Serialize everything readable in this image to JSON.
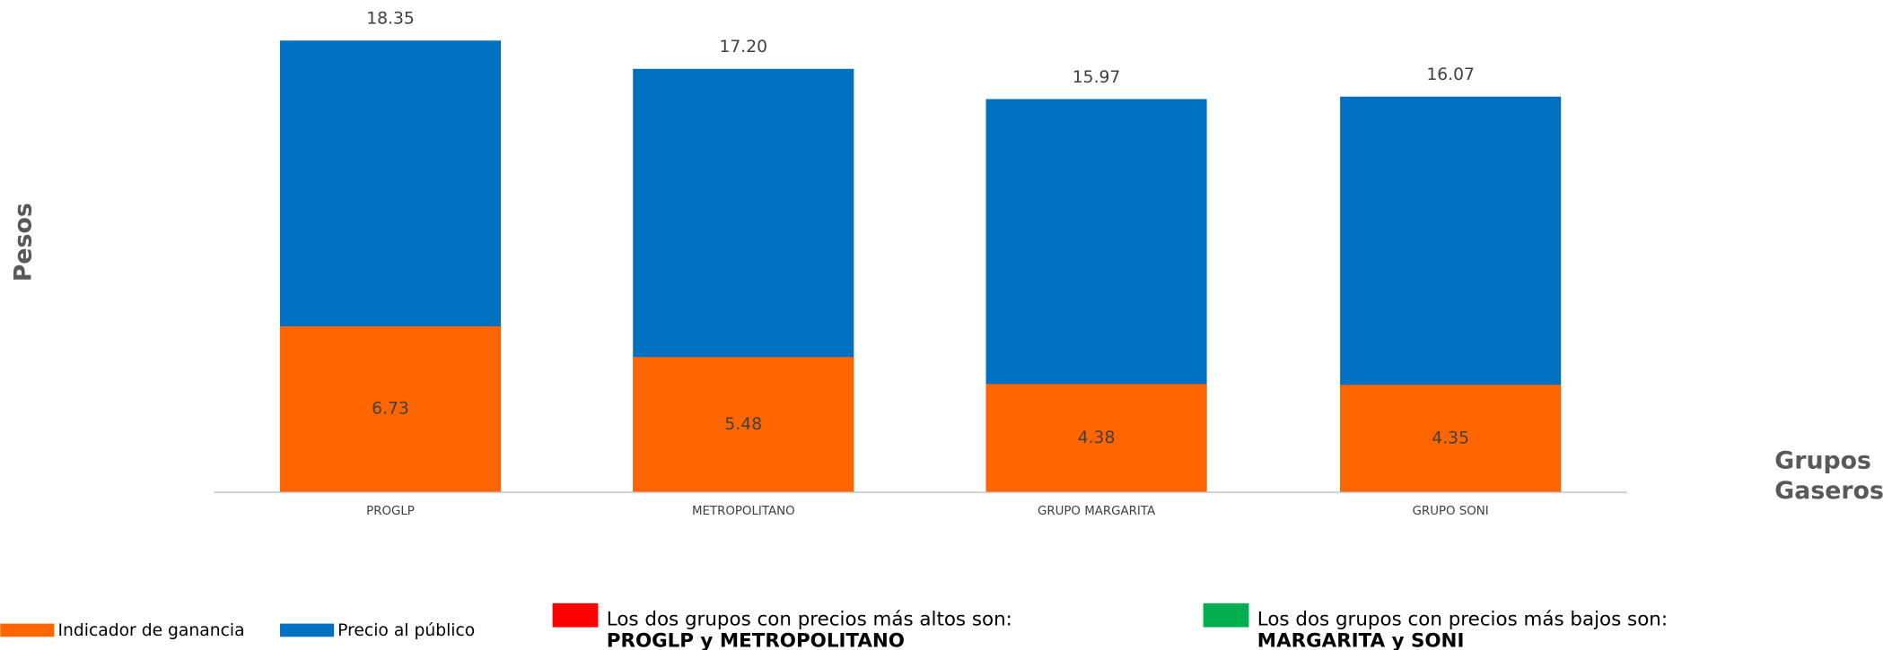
{
  "chart_data": {
    "type": "bar",
    "barmode": "overlay",
    "categories": [
      "PROGLP",
      "METROPOLITANO",
      "GRUPO MARGARITA",
      "GRUPO SONI"
    ],
    "series": [
      {
        "name": "Precio al público",
        "color": "#0070c0",
        "values": [
          18.35,
          17.2,
          15.97,
          16.07
        ],
        "value_labels": [
          "18.35",
          "17.20",
          "15.97",
          "16.07"
        ]
      },
      {
        "name": "Indicador de ganancia",
        "color": "#ff6600",
        "values": [
          6.73,
          5.48,
          4.38,
          4.35
        ]
      }
    ],
    "ylim": [
      0,
      20
    ],
    "ylabel": "Pesos",
    "xlabel": [
      "Grupos",
      "Gaseros"
    ]
  },
  "notes": [
    {
      "text": "Los dos grupos con precios más altos son:",
      "highlight": "PROGLP y METROPOLITANO",
      "color": "#ff0000"
    },
    {
      "text": "Los dos grupos con precios más bajos son:",
      "highlight": "MARGARITA y SONI",
      "color": "#00b050"
    }
  ]
}
